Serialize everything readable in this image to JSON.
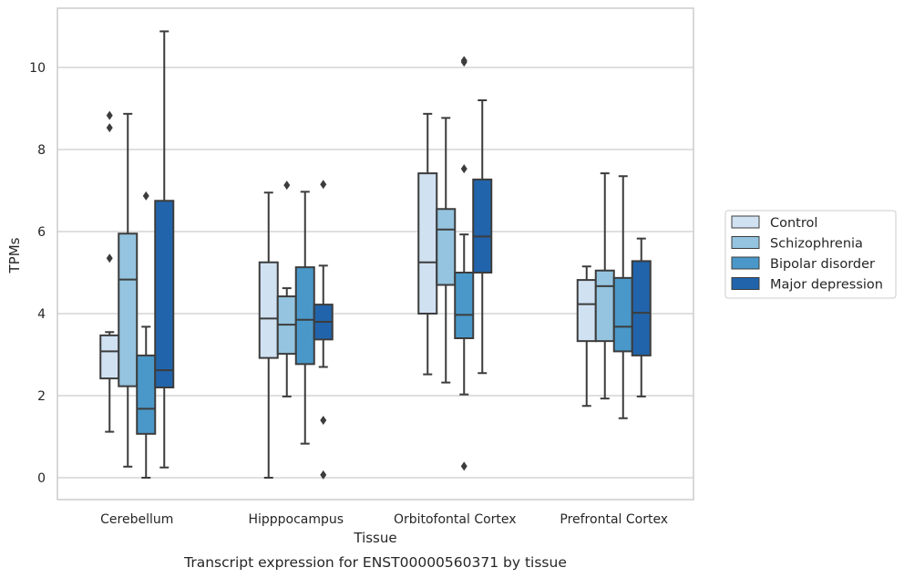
{
  "caption": "Transcript expression for ENST00000560371 by tissue",
  "chart_data": {
    "type": "box",
    "xlabel": "Tissue",
    "ylabel": "TPMs",
    "ylim": [
      -0.5,
      11.5
    ],
    "yticks": [
      0,
      2,
      4,
      6,
      8,
      10
    ],
    "grid": "horizontal",
    "legend_position": "right",
    "categories": [
      "Cerebellum",
      "Hipppocampus",
      "Orbitofontal Cortex",
      "Prefrontal Cortex"
    ],
    "series": [
      {
        "name": "Control",
        "color": "#d0e1f2",
        "boxes": [
          {
            "whislo": 1.12,
            "q1": 2.42,
            "med": 3.08,
            "q3": 3.47,
            "whishi": 3.55,
            "fliers": [
              5.35,
              8.53,
              8.83
            ]
          },
          {
            "whislo": 0.0,
            "q1": 2.92,
            "med": 3.88,
            "q3": 5.25,
            "whishi": 6.95,
            "fliers": []
          },
          {
            "whislo": 2.52,
            "q1": 4.0,
            "med": 5.25,
            "q3": 7.42,
            "whishi": 8.87,
            "fliers": []
          },
          {
            "whislo": 1.75,
            "q1": 3.33,
            "med": 4.23,
            "q3": 4.82,
            "whishi": 5.15,
            "fliers": []
          }
        ]
      },
      {
        "name": "Schizophrenia",
        "color": "#94c4df",
        "boxes": [
          {
            "whislo": 0.27,
            "q1": 2.23,
            "med": 4.83,
            "q3": 5.95,
            "whishi": 8.87,
            "fliers": []
          },
          {
            "whislo": 1.98,
            "q1": 3.02,
            "med": 3.73,
            "q3": 4.42,
            "whishi": 4.62,
            "fliers": [
              7.13
            ]
          },
          {
            "whislo": 2.32,
            "q1": 4.7,
            "med": 6.05,
            "q3": 6.55,
            "whishi": 8.77,
            "fliers": []
          },
          {
            "whislo": 1.93,
            "q1": 3.33,
            "med": 4.67,
            "q3": 5.05,
            "whishi": 7.42,
            "fliers": []
          }
        ]
      },
      {
        "name": "Bipolar disorder",
        "color": "#4a98c9",
        "boxes": [
          {
            "whislo": 0.0,
            "q1": 1.07,
            "med": 1.68,
            "q3": 2.98,
            "whishi": 3.68,
            "fliers": [
              6.87
            ]
          },
          {
            "whislo": 0.83,
            "q1": 2.77,
            "med": 3.85,
            "q3": 5.13,
            "whishi": 6.97,
            "fliers": []
          },
          {
            "whislo": 2.03,
            "q1": 3.4,
            "med": 3.97,
            "q3": 5.0,
            "whishi": 5.93,
            "fliers": [
              0.28,
              7.53,
              10.13,
              10.17
            ]
          },
          {
            "whislo": 1.45,
            "q1": 3.08,
            "med": 3.68,
            "q3": 4.87,
            "whishi": 7.35,
            "fliers": []
          }
        ]
      },
      {
        "name": "Major depression",
        "color": "#2164ab",
        "boxes": [
          {
            "whislo": 0.25,
            "q1": 2.2,
            "med": 2.62,
            "q3": 6.75,
            "whishi": 10.88,
            "fliers": []
          },
          {
            "whislo": 2.7,
            "q1": 3.37,
            "med": 3.8,
            "q3": 4.22,
            "whishi": 5.17,
            "fliers": [
              0.07,
              1.4,
              7.15
            ]
          },
          {
            "whislo": 2.55,
            "q1": 5.0,
            "med": 5.88,
            "q3": 7.27,
            "whishi": 9.2,
            "fliers": []
          },
          {
            "whislo": 1.98,
            "q1": 2.98,
            "med": 4.02,
            "q3": 5.28,
            "whishi": 5.83,
            "fliers": []
          }
        ]
      }
    ]
  }
}
